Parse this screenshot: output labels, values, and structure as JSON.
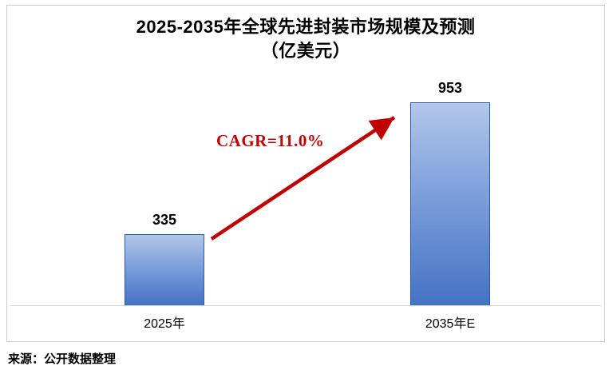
{
  "chart_data": {
    "type": "bar",
    "title": "2025-2035年全球先进封装市场规模及预测",
    "subtitle": "（亿美元）",
    "categories": [
      "2025年",
      "2035年E"
    ],
    "values": [
      335,
      953
    ],
    "annotation": "CAGR=11.0%",
    "ylim": [
      0,
      1000
    ],
    "grid": false,
    "legend": "none",
    "colors": {
      "bar_top": "#b3c7ea",
      "bar_bottom": "#4472c4",
      "bar_border": "#2e5b9c",
      "accent": "#c00000",
      "axis_line": "#d6d6d6",
      "frame_border": "#cbcbcb"
    }
  },
  "footer": {
    "source": "来源：公开数据整理"
  }
}
